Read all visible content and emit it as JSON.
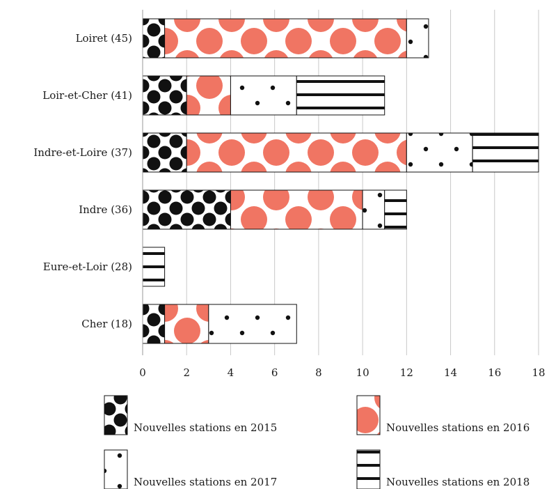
{
  "chart_data": {
    "type": "bar",
    "stacked": true,
    "orientation": "horizontal",
    "categories": [
      "Loiret (45)",
      "Loir-et-Cher (41)",
      "Indre-et-Loire (37)",
      "Indre (36)",
      "Eure-et-Loir (28)",
      "Cher (18)"
    ],
    "series": [
      {
        "name": "Nouvelles stations en 2015",
        "values": [
          1,
          2,
          2,
          4,
          0,
          1
        ],
        "pattern": "big-dots",
        "color": "#111111"
      },
      {
        "name": "Nouvelles stations en 2016",
        "values": [
          11,
          2,
          10,
          6,
          0,
          2
        ],
        "pattern": "circles",
        "color": "#f07563"
      },
      {
        "name": "Nouvelles stations en 2017",
        "values": [
          1,
          3,
          3,
          1,
          0,
          4
        ],
        "pattern": "small-dots",
        "color": "#111111"
      },
      {
        "name": "Nouvelles stations en 2018",
        "values": [
          0,
          4,
          3,
          1,
          1,
          0
        ],
        "pattern": "stripes",
        "color": "#111111"
      }
    ],
    "xlim": [
      0,
      18
    ],
    "xticks": [
      0,
      2,
      4,
      6,
      8,
      10,
      12,
      14,
      16,
      18
    ],
    "grid": true,
    "legend_position": "bottom"
  }
}
